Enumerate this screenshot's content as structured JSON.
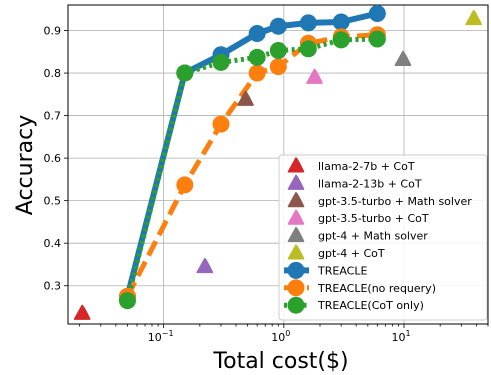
{
  "chart_data": {
    "type": "scatter",
    "xlabel": "Total cost($)",
    "ylabel": "Accuracy",
    "xscale": "log",
    "xlim": [
      0.016,
      50
    ],
    "ylim": [
      0.21,
      0.96
    ],
    "xticks": [
      {
        "value": 0.1,
        "base": "10",
        "exp": "−1"
      },
      {
        "value": 1,
        "base": "10",
        "exp": "0"
      },
      {
        "value": 10,
        "base": "10",
        "exp": "1"
      }
    ],
    "yticks": [
      0.3,
      0.4,
      0.5,
      0.6,
      0.7,
      0.8,
      0.9
    ],
    "grid": true,
    "legend_position": "lower-right",
    "points": [
      {
        "name": "llama-2-7b + CoT",
        "color": "#d62728",
        "x": 0.021,
        "y": 0.235
      },
      {
        "name": "llama-2-13b + CoT",
        "color": "#9467bd",
        "x": 0.22,
        "y": 0.345
      },
      {
        "name": "gpt-3.5-turbo + Math solver",
        "color": "#8c564b",
        "x": 0.48,
        "y": 0.738
      },
      {
        "name": "gpt-3.5-turbo + CoT",
        "color": "#e377c2",
        "x": 1.8,
        "y": 0.79
      },
      {
        "name": "gpt-4 + Math solver",
        "color": "#7f7f7f",
        "x": 9.8,
        "y": 0.832
      },
      {
        "name": "gpt-4 + CoT",
        "color": "#bcbd22",
        "x": 38,
        "y": 0.928
      }
    ],
    "series": [
      {
        "name": "TREACLE",
        "color": "#1f77b4",
        "style": "solid",
        "x": [
          0.05,
          0.15,
          0.3,
          0.6,
          0.9,
          1.6,
          3,
          6
        ],
        "y": [
          0.275,
          0.8,
          0.843,
          0.893,
          0.91,
          0.918,
          0.92,
          0.94
        ]
      },
      {
        "name": "TREACLE(no requery)",
        "color": "#ff7f0e",
        "style": "dashed",
        "x": [
          0.05,
          0.15,
          0.3,
          0.6,
          0.9,
          1.6,
          3,
          6
        ],
        "y": [
          0.275,
          0.537,
          0.68,
          0.8,
          0.815,
          0.87,
          0.885,
          0.89
        ]
      },
      {
        "name": "TREACLE(CoT only)",
        "color": "#2ca02c",
        "style": "dotted",
        "x": [
          0.05,
          0.15,
          0.3,
          0.6,
          0.9,
          1.6,
          3,
          6
        ],
        "y": [
          0.265,
          0.8,
          0.825,
          0.837,
          0.853,
          0.857,
          0.878,
          0.88
        ]
      }
    ]
  }
}
